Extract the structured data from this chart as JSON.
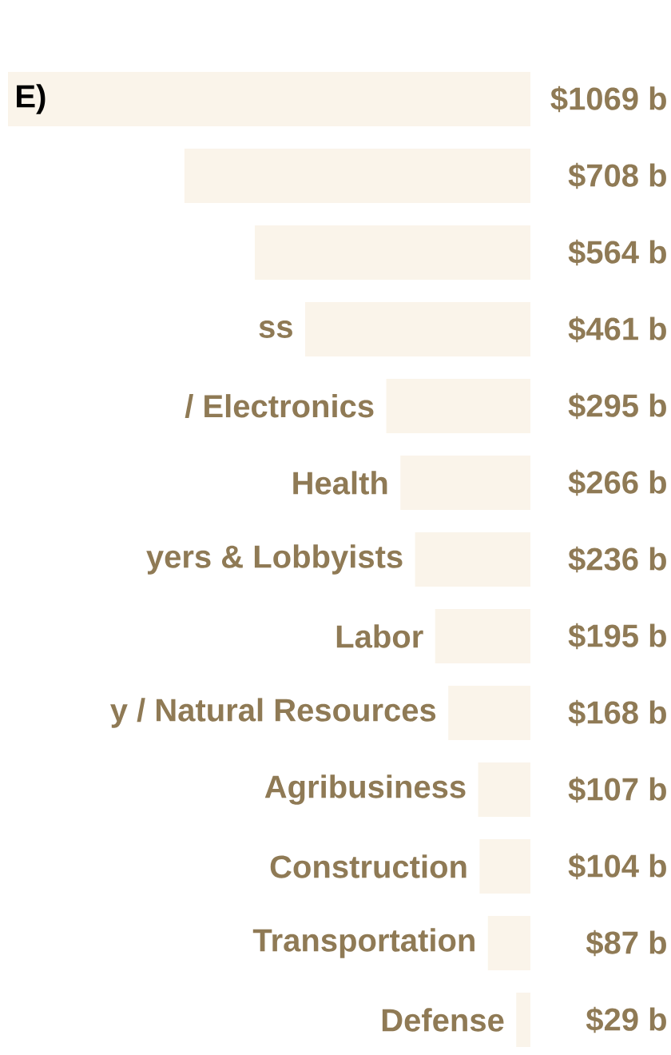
{
  "chart_data": {
    "type": "bar",
    "orientation": "horizontal",
    "categories": [
      "E)",
      null,
      null,
      "ss",
      "/ Electronics",
      "Health",
      "yers & Lobbyists",
      "Labor",
      "y / Natural Resources",
      "Agribusiness",
      "Construction",
      "Transportation",
      "Defense"
    ],
    "values": [
      1069,
      708,
      564,
      461,
      295,
      266,
      236,
      195,
      168,
      107,
      104,
      87,
      29
    ],
    "color": "#faf4ea",
    "value_labels": [
      "$1069 b",
      "$708 b",
      "$564 b",
      "$461 b",
      "$295 b",
      "$266 b",
      "$236 b",
      "$195 b",
      "$168 b",
      "$107 b",
      "$104 b",
      "$87 b",
      "$29 b"
    ]
  }
}
